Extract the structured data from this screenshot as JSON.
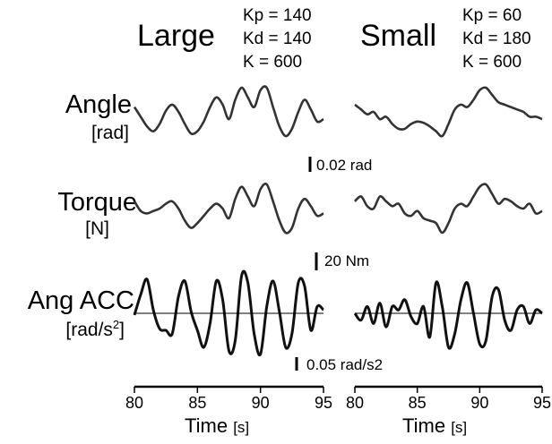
{
  "chart_data": {
    "type": "line",
    "conditions": [
      {
        "name": "Large",
        "params": [
          "Kp = 140",
          "Kd = 140",
          "K = 600"
        ]
      },
      {
        "name": "Small",
        "params": [
          "Kp = 60",
          "Kd = 180",
          "K = 600"
        ]
      }
    ],
    "rows": [
      {
        "label": "Angle",
        "unit": "[rad]",
        "scale_bar": "0.02 rad"
      },
      {
        "label": "Torque",
        "unit": "[N]",
        "scale_bar": "20 Nm"
      },
      {
        "label": "Ang ACC",
        "unit_base": "[rad/s",
        "unit_sup": "2",
        "unit_end": "]",
        "scale_bar": "0.05 rad/s2",
        "zero_line": true
      }
    ],
    "x_ticks": [
      80,
      85,
      90,
      95
    ],
    "xlabel": "Time",
    "xlabel_unit": "[s]",
    "xlim": [
      80,
      95
    ],
    "x": [
      80,
      80.5,
      81,
      81.5,
      82,
      82.5,
      83,
      83.5,
      84,
      84.5,
      85,
      85.5,
      86,
      86.5,
      87,
      87.5,
      88,
      88.5,
      89,
      89.5,
      90,
      90.5,
      91,
      91.5,
      92,
      92.5,
      93,
      93.5,
      94,
      94.5,
      95
    ],
    "series": [
      {
        "condition": "Large",
        "row": "Angle",
        "values": [
          0.2,
          -0.2,
          -0.6,
          -0.8,
          -0.5,
          0.05,
          0.3,
          0.0,
          -0.5,
          -0.9,
          -0.8,
          -0.4,
          0.2,
          0.6,
          0.3,
          -0.3,
          0.5,
          1.0,
          0.6,
          0.2,
          0.9,
          1.0,
          0.2,
          -0.6,
          -1.0,
          -0.7,
          0.0,
          0.5,
          0.1,
          -0.4,
          -0.3
        ]
      },
      {
        "condition": "Small",
        "row": "Angle",
        "values": [
          0.3,
          0.1,
          -0.1,
          0.0,
          -0.3,
          -0.2,
          -0.5,
          -0.7,
          -0.7,
          -0.5,
          -0.4,
          -0.45,
          -0.6,
          -0.8,
          -1.0,
          -0.5,
          0.1,
          0.3,
          0.2,
          0.5,
          0.9,
          1.0,
          0.7,
          0.4,
          0.3,
          0.2,
          0.1,
          0.0,
          -0.2,
          -0.2,
          -0.3
        ]
      },
      {
        "condition": "Large",
        "row": "Torque",
        "values": [
          0.3,
          -0.1,
          -0.2,
          -0.1,
          0.0,
          0.2,
          0.3,
          0.0,
          -0.5,
          -0.8,
          -0.6,
          -0.3,
          0.0,
          0.2,
          0.0,
          -0.4,
          0.4,
          0.9,
          0.5,
          0.1,
          0.8,
          1.0,
          0.3,
          -0.5,
          -1.0,
          -0.8,
          0.0,
          0.4,
          0.1,
          -0.3,
          -0.2
        ]
      },
      {
        "condition": "Small",
        "row": "Torque",
        "values": [
          0.3,
          0.5,
          0.1,
          0.0,
          0.5,
          0.3,
          0.1,
          0.2,
          -0.2,
          -0.3,
          -0.1,
          -0.4,
          -0.5,
          -0.6,
          -1.0,
          -0.6,
          0.0,
          0.2,
          0.1,
          0.5,
          0.9,
          1.0,
          0.6,
          0.2,
          0.4,
          0.3,
          0.1,
          0.0,
          0.2,
          -0.2,
          -0.1
        ]
      },
      {
        "condition": "Large",
        "row": "Ang ACC",
        "values": [
          -0.05,
          0.55,
          1.0,
          0.1,
          -0.45,
          -0.5,
          -0.6,
          0.5,
          0.95,
          0.05,
          -0.5,
          -1.0,
          -0.3,
          0.95,
          0.4,
          -1.1,
          -0.8,
          1.1,
          0.9,
          -0.6,
          -1.2,
          0.2,
          0.95,
          0.05,
          -1.0,
          -0.6,
          0.9,
          0.8,
          -0.5,
          0.2,
          0.1
        ]
      },
      {
        "condition": "Small",
        "row": "Ang ACC",
        "values": [
          0.0,
          -0.2,
          0.2,
          -0.3,
          0.3,
          -0.4,
          0.2,
          0.1,
          0.4,
          -0.1,
          -0.3,
          0.2,
          -0.7,
          0.9,
          0.2,
          -1.0,
          -0.6,
          0.4,
          0.9,
          0.0,
          -0.9,
          -0.8,
          0.5,
          0.7,
          -0.2,
          -0.5,
          0.1,
          0.2,
          -0.3,
          0.1,
          0.0
        ]
      }
    ]
  }
}
